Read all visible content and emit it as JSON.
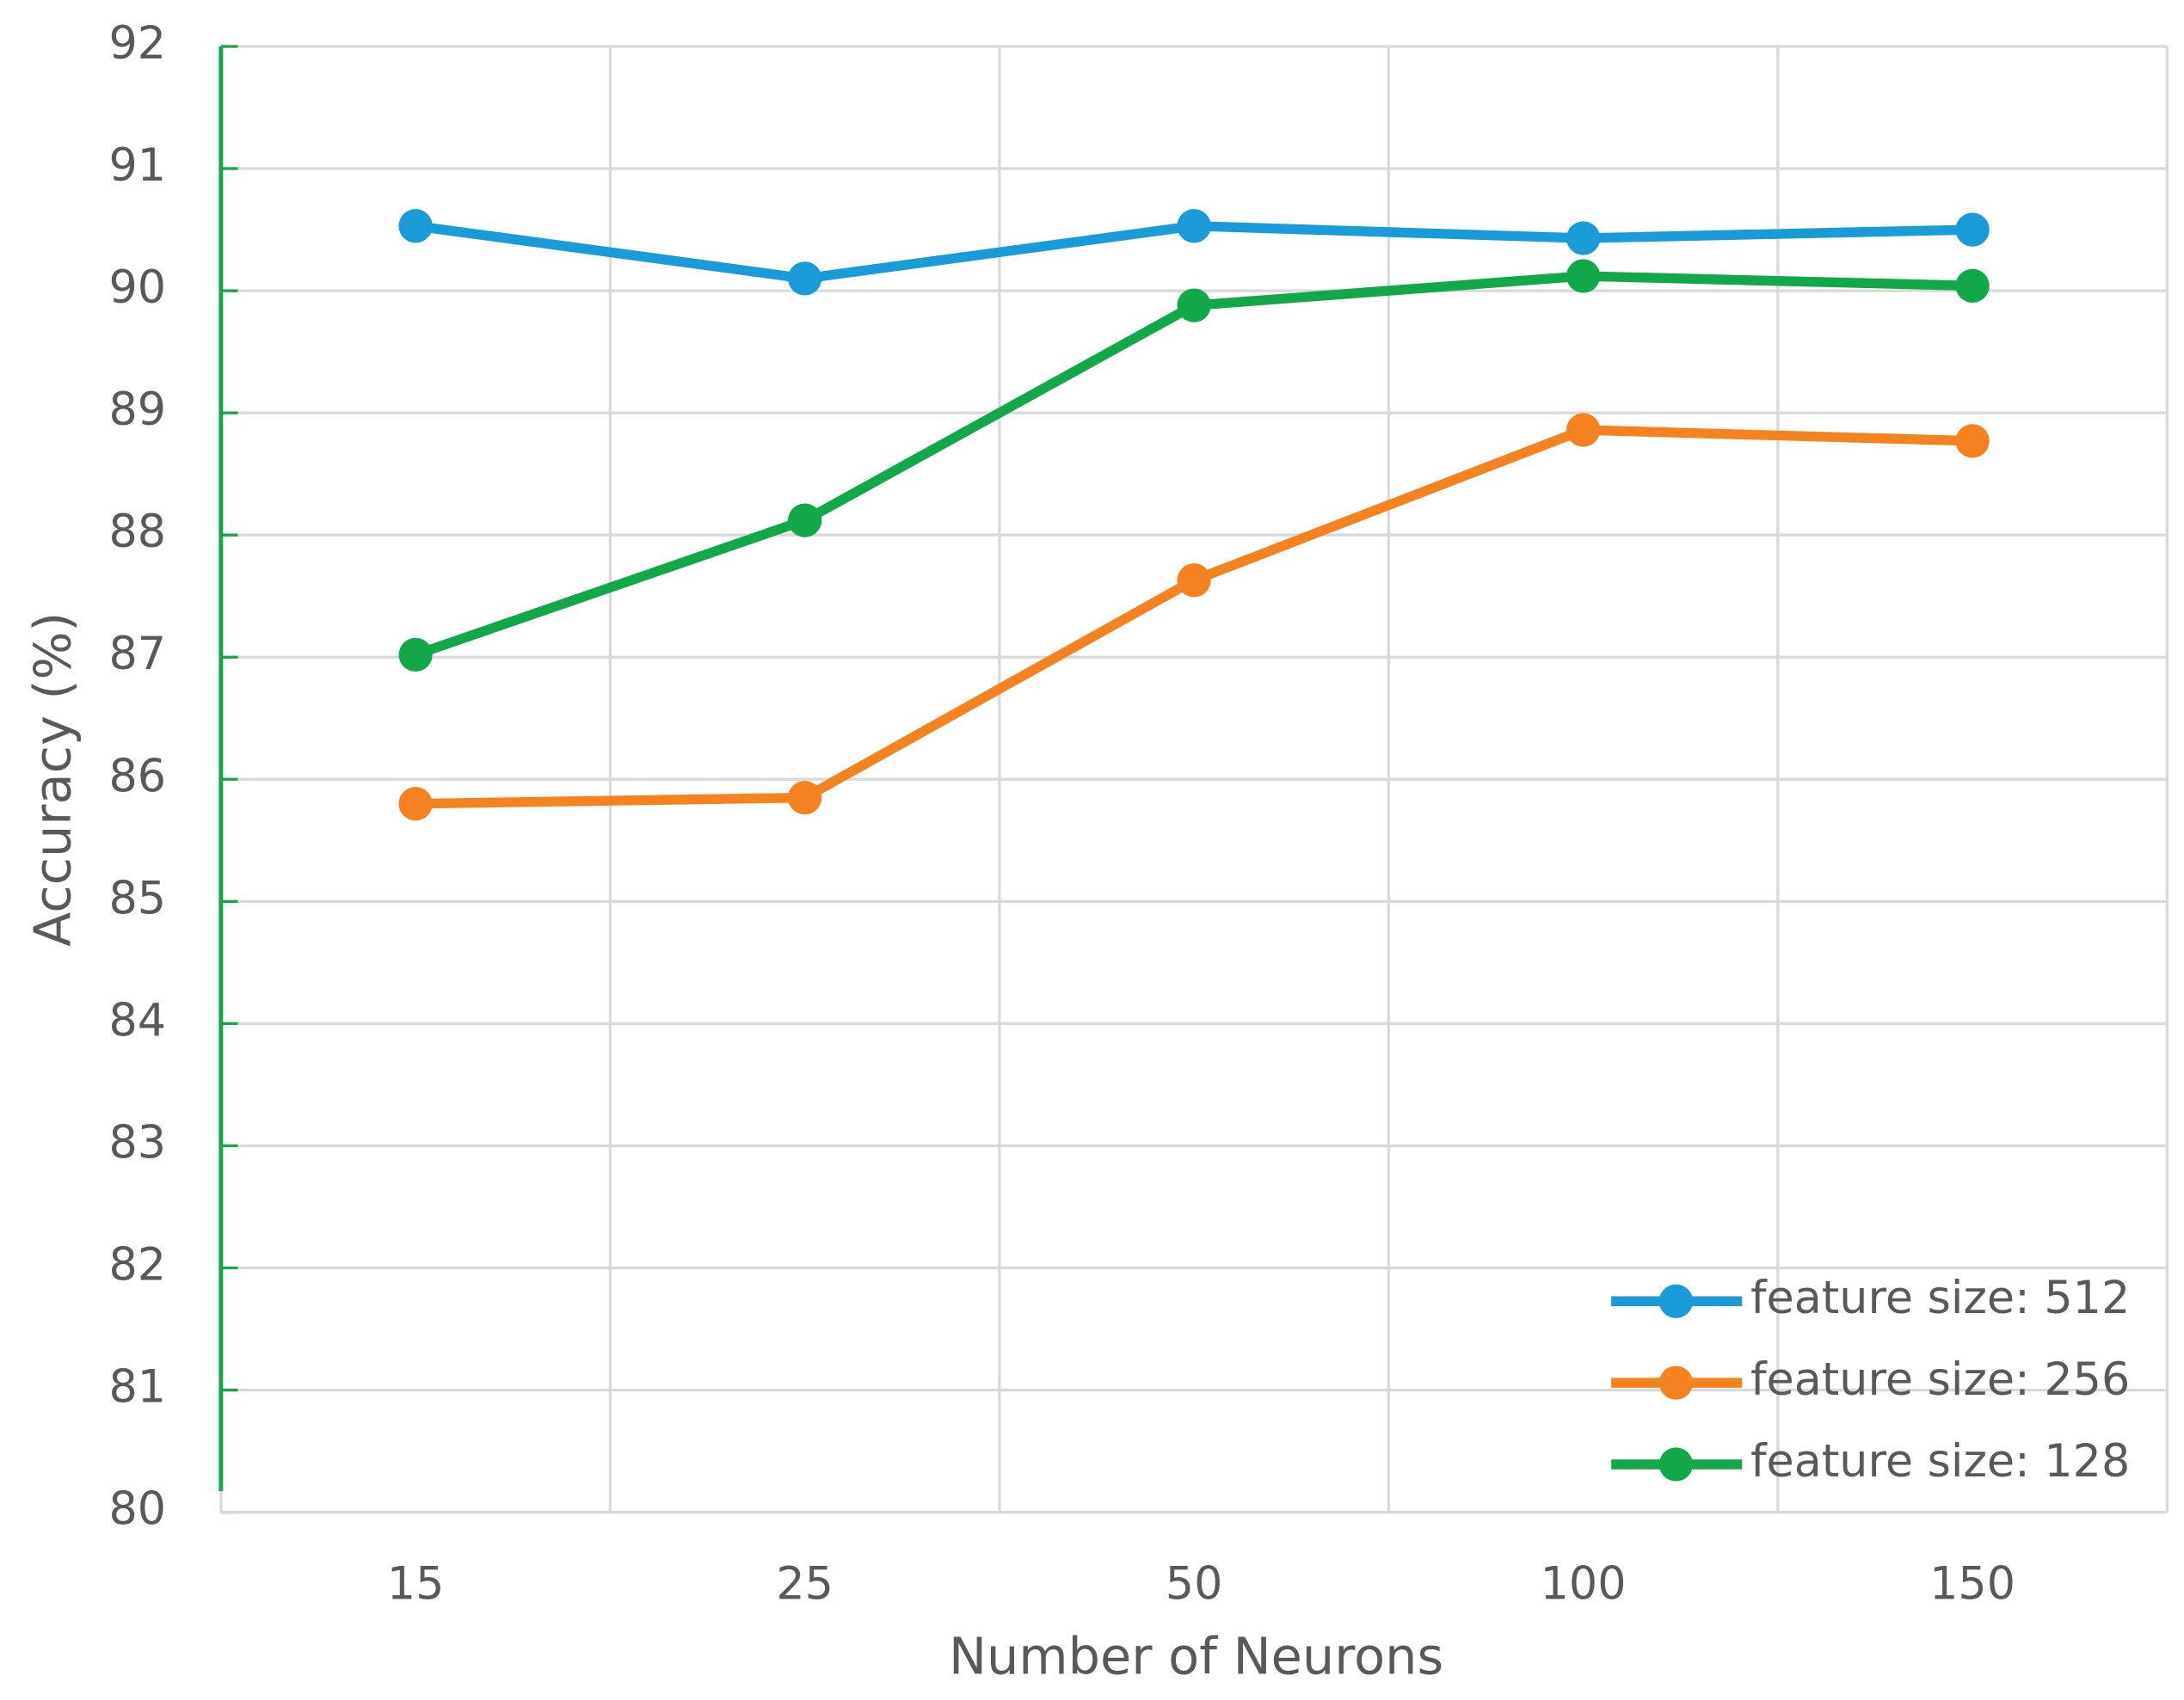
{
  "chart_data": {
    "type": "line",
    "x_label": "Number of Neurons",
    "y_label": "Accuracy (%)",
    "categories": [
      "15",
      "25",
      "50",
      "100",
      "150"
    ],
    "series": [
      {
        "name": "feature size: 512",
        "color": "#1a9ad6",
        "values": [
          90.53,
          90.1,
          90.53,
          90.43,
          90.5
        ]
      },
      {
        "name": "feature size: 256",
        "color": "#f58220",
        "values": [
          85.8,
          85.85,
          87.63,
          88.86,
          88.77
        ]
      },
      {
        "name": "feature size: 128",
        "color": "#12a84a",
        "values": [
          87.02,
          88.12,
          89.88,
          90.12,
          90.04
        ]
      }
    ],
    "ylim": [
      80,
      92
    ],
    "yticks": [
      80,
      81,
      82,
      83,
      84,
      85,
      86,
      87,
      88,
      89,
      90,
      91,
      92
    ],
    "grid": true,
    "legend": "lower right"
  }
}
